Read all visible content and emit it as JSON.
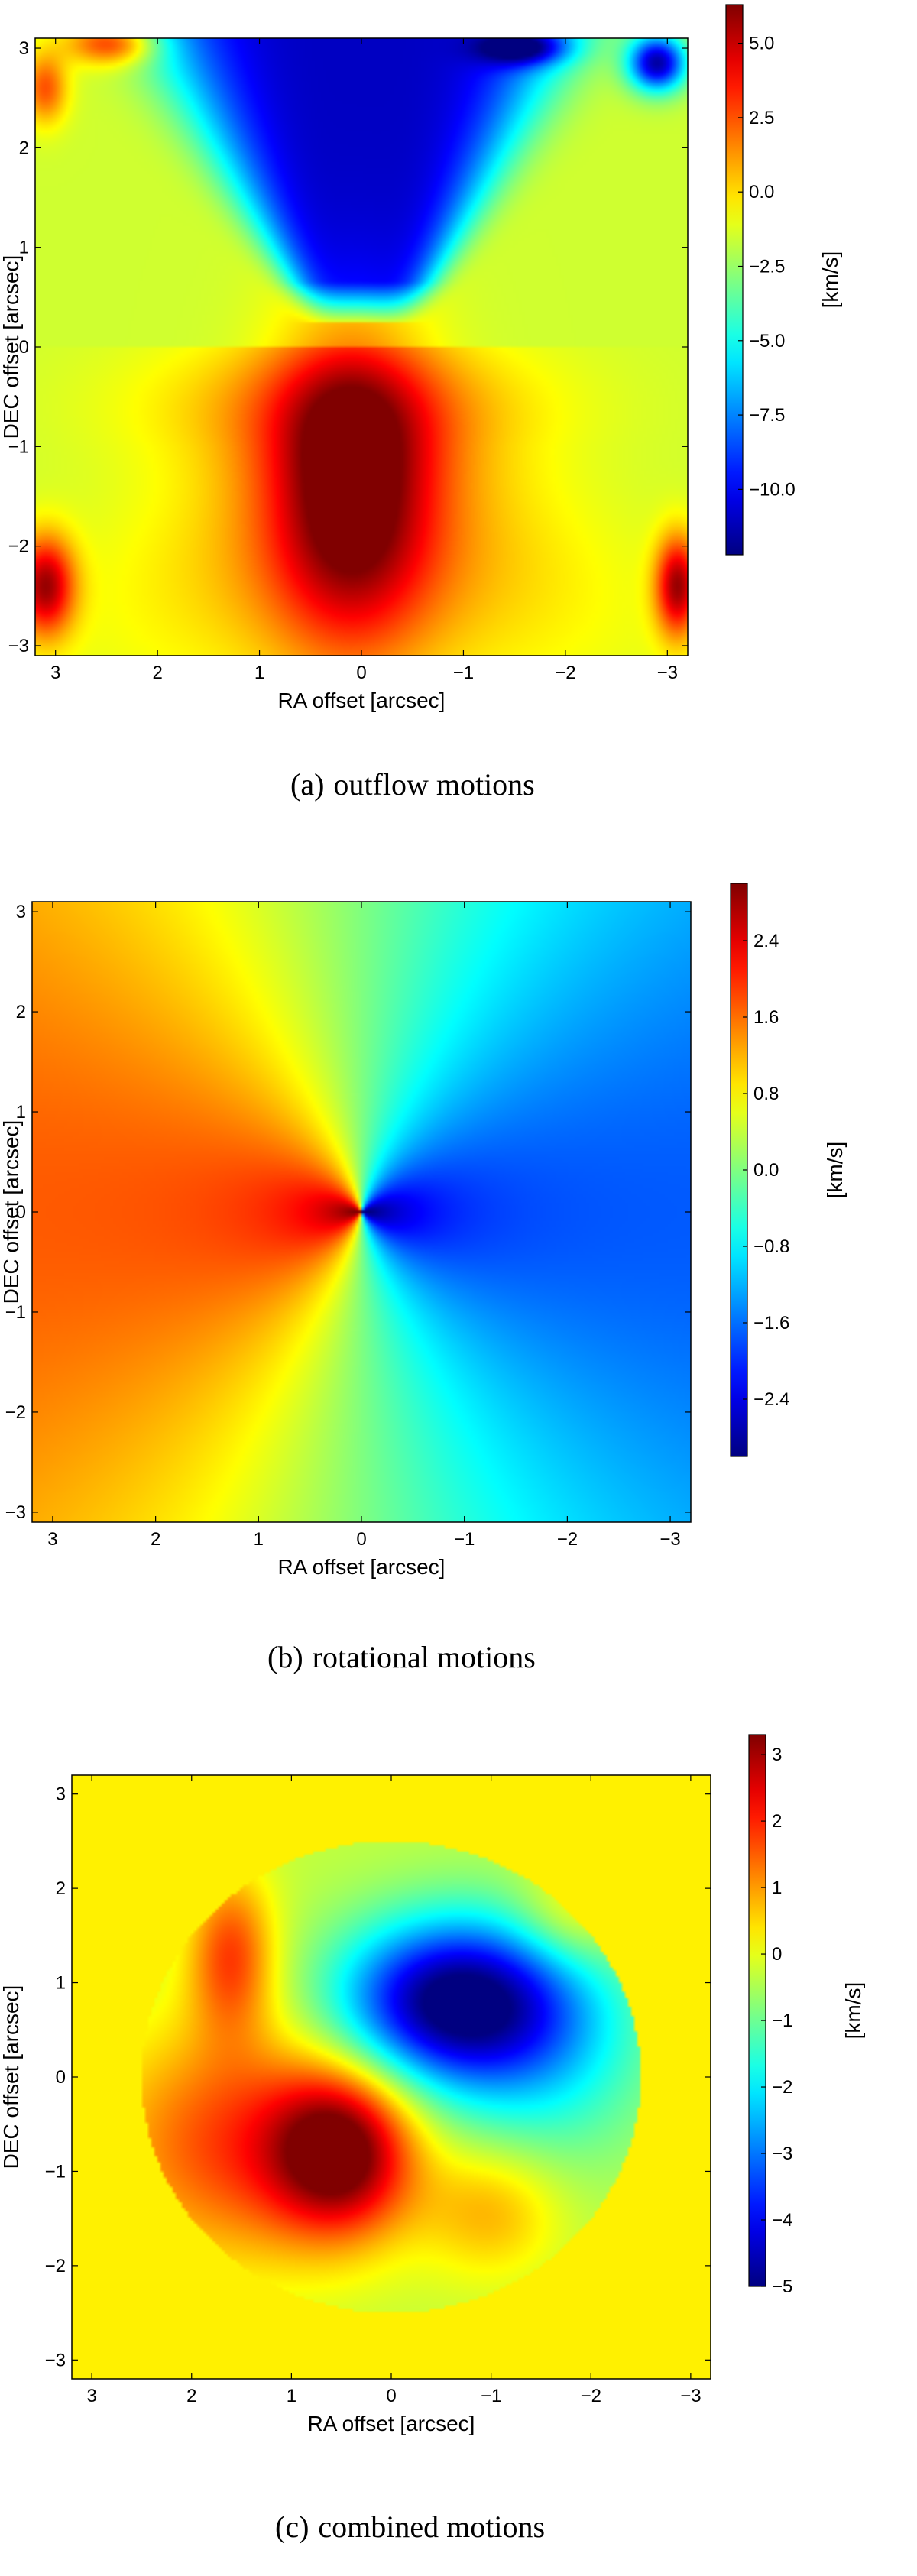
{
  "chart_data": [
    {
      "type": "heatmap",
      "caption_label": "(a)",
      "caption_text": "outflow motions",
      "xlabel": "RA offset [arcsec]",
      "ylabel": "DEC offset [arcsec]",
      "xlim": [
        3.2,
        -3.2
      ],
      "ylim": [
        -3.1,
        3.1
      ],
      "xticks": [
        "3",
        "2",
        "1",
        "0",
        "−1",
        "−2",
        "−3"
      ],
      "yticks": [
        "−3",
        "−2",
        "−1",
        "0",
        "1",
        "2",
        "3"
      ],
      "colorbar": {
        "label": "[km/s]",
        "range": [
          -12.2,
          6.3
        ],
        "ticks": [
          "5.0",
          "2.5",
          "0.0",
          "−2.5",
          "−5.0",
          "−7.5",
          "−10.0"
        ],
        "tick_values": [
          5.0,
          2.5,
          0.0,
          -2.5,
          -5.0,
          -7.5,
          -10.0
        ]
      },
      "features": [
        {
          "name": "background",
          "value_kms": -1.5
        },
        {
          "name": "blue lobe (north)",
          "x": 0.0,
          "y": 1.9,
          "value_kms": -10.5
        },
        {
          "name": "red lobe (south)",
          "x": 0.1,
          "y": -1.2,
          "value_kms": 5.5
        }
      ]
    },
    {
      "type": "heatmap",
      "caption_label": "(b)",
      "caption_text": "rotational motions",
      "xlabel": "RA offset [arcsec]",
      "ylabel": "DEC offset [arcsec]",
      "xlim": [
        3.2,
        -3.2
      ],
      "ylim": [
        -3.1,
        3.1
      ],
      "xticks": [
        "3",
        "2",
        "1",
        "0",
        "−1",
        "−2",
        "−3"
      ],
      "yticks": [
        "−3",
        "−2",
        "−1",
        "0",
        "1",
        "2",
        "3"
      ],
      "colorbar": {
        "label": "[km/s]",
        "range": [
          -3.0,
          3.0
        ],
        "ticks": [
          "2.4",
          "1.6",
          "0.8",
          "0.0",
          "−0.8",
          "−1.6",
          "−2.4"
        ],
        "tick_values": [
          2.4,
          1.6,
          0.8,
          0.0,
          -0.8,
          -1.6,
          -2.4
        ]
      },
      "features": [
        {
          "name": "east side (red)",
          "x": 0.5,
          "y": 0.0,
          "value_kms": 2.9
        },
        {
          "name": "west side (blue)",
          "x": -0.5,
          "y": 0.0,
          "value_kms": -2.9
        }
      ]
    },
    {
      "type": "heatmap",
      "caption_label": "(c)",
      "caption_text": "combined motions",
      "xlabel": "RA offset [arcsec]",
      "ylabel": "DEC offset [arcsec]",
      "xlim": [
        3.2,
        -3.2
      ],
      "ylim": [
        -3.2,
        3.2
      ],
      "xticks": [
        "3",
        "2",
        "1",
        "0",
        "−1",
        "−2",
        "−3"
      ],
      "yticks": [
        "−3",
        "−2",
        "−1",
        "0",
        "1",
        "2",
        "3"
      ],
      "colorbar": {
        "label": "[km/s]",
        "range": [
          -5.0,
          3.3
        ],
        "ticks": [
          "3",
          "2",
          "1",
          "0",
          "−1",
          "−2",
          "−3",
          "−4",
          "−5"
        ],
        "tick_values": [
          3,
          2,
          1,
          0,
          -1,
          -2,
          -3,
          -4,
          -5
        ]
      },
      "disk_radius_arcsec": 2.5,
      "features": [
        {
          "name": "outside disk",
          "value_kms": 0.3
        },
        {
          "name": "blue lobe",
          "x": -0.6,
          "y": 0.8,
          "value_kms": -4.8
        },
        {
          "name": "red lobe",
          "x": 0.5,
          "y": -0.8,
          "value_kms": 2.9
        }
      ]
    }
  ]
}
